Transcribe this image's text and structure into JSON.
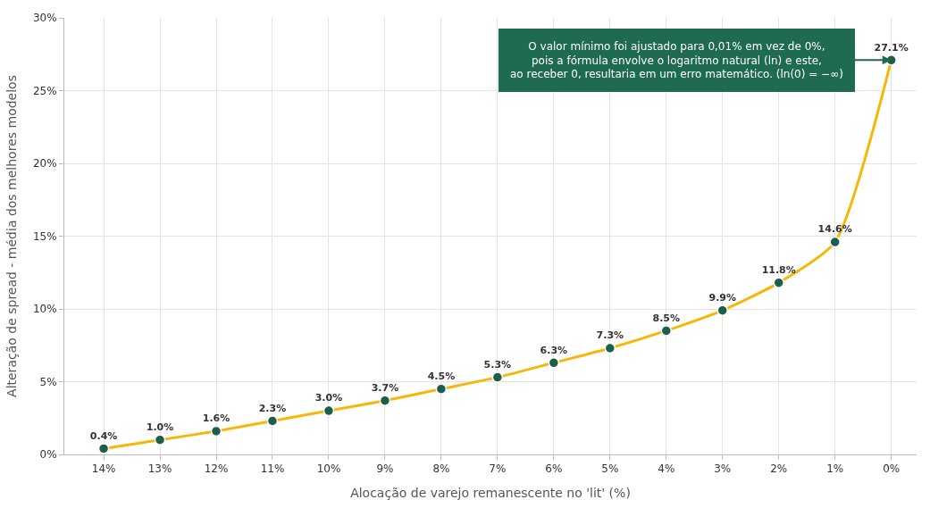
{
  "chart_data": {
    "type": "line",
    "xlabel": "Alocação de varejo remanescente no 'lit' (%)",
    "ylabel": "Alteração de spread - média dos melhores modelos",
    "categories": [
      "14%",
      "13%",
      "12%",
      "11%",
      "10%",
      "9%",
      "8%",
      "7%",
      "6%",
      "5%",
      "4%",
      "3%",
      "2%",
      "1%",
      "0%"
    ],
    "series": [
      {
        "color": "#f5b80a",
        "colors": [
          "#1b5e4a",
          "#1b5e4a",
          "#1b5e4a",
          "#1b5e4a",
          "#1b5e4a",
          "#1b5e4a",
          "#1b5e4a",
          "#1b5e4a",
          "#1b5e4a",
          "#1b5e4a",
          "#1b5e4a",
          "#1b5e4a",
          "#1b5e4a",
          "#1b5e4a",
          "#1b5e4a"
        ],
        "values": [
          0.4,
          1.0,
          1.6,
          2.3,
          3.0,
          3.7,
          4.5,
          5.3,
          6.3,
          7.3,
          8.5,
          9.9,
          11.8,
          14.6,
          27.1
        ],
        "value_labels": [
          "0.4%",
          "1.0%",
          "1.6%",
          "2.3%",
          "3.0%",
          "3.7%",
          "4.5%",
          "5.3%",
          "6.3%",
          "7.3%",
          "8.5%",
          "9.9%",
          "11.8%",
          "14.6%",
          "27.1%"
        ]
      }
    ],
    "ylim": [
      0,
      30
    ],
    "yticks": [
      {
        "value": 0,
        "label": "0%"
      },
      {
        "value": 5,
        "label": "5%"
      },
      {
        "value": 10,
        "label": "10%"
      },
      {
        "value": 15,
        "label": "15%"
      },
      {
        "value": 20,
        "label": "20%"
      },
      {
        "value": 25,
        "label": "25%"
      },
      {
        "value": 30,
        "label": "30%"
      }
    ],
    "annotations": [
      {
        "text": "O valor mínimo foi ajustado para 0,01% em vez de 0%,\npois a fórmula envolve o logaritmo natural (ln) e este,\nao receber 0, resultaria em um erro matemático. (ln(0) = −∞)",
        "x": "0%",
        "y": 27.1
      }
    ],
    "grid": true,
    "marker": "circle",
    "line_style": "solid"
  }
}
